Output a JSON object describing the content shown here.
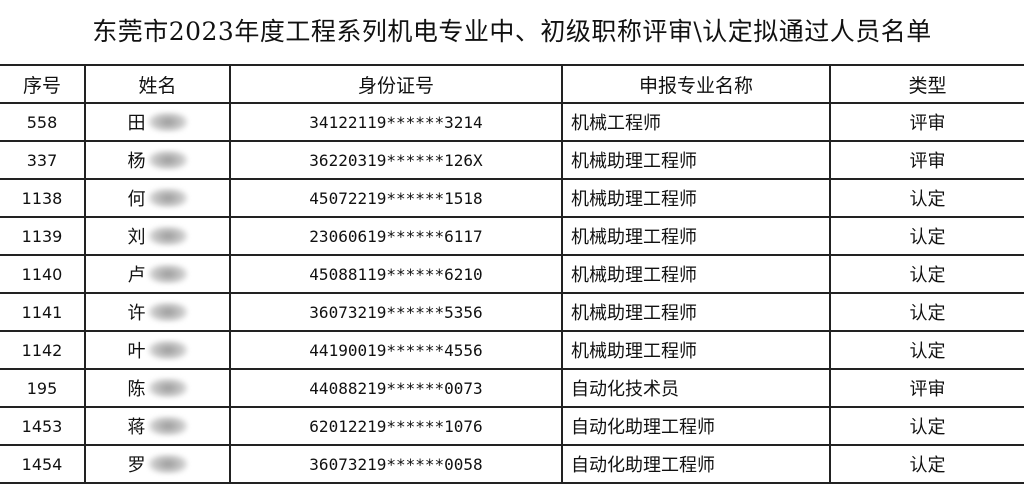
{
  "title": "东莞市2023年度工程系列机电专业中、初级职称评审\\认定拟通过人员名单",
  "headers": [
    "序号",
    "姓名",
    "身份证号",
    "申报专业名称",
    "类型"
  ],
  "rows": [
    {
      "seq": "558",
      "surname": "田",
      "id": "34122119******3214",
      "major": "机械工程师",
      "type": "评审"
    },
    {
      "seq": "337",
      "surname": "杨",
      "id": "36220319******126X",
      "major": "机械助理工程师",
      "type": "评审"
    },
    {
      "seq": "1138",
      "surname": "何",
      "id": "45072219******1518",
      "major": "机械助理工程师",
      "type": "认定"
    },
    {
      "seq": "1139",
      "surname": "刘",
      "id": "23060619******6117",
      "major": "机械助理工程师",
      "type": "认定"
    },
    {
      "seq": "1140",
      "surname": "卢",
      "id": "45088119******6210",
      "major": "机械助理工程师",
      "type": "认定"
    },
    {
      "seq": "1141",
      "surname": "许",
      "id": "36073219******5356",
      "major": "机械助理工程师",
      "type": "认定"
    },
    {
      "seq": "1142",
      "surname": "叶",
      "id": "44190019******4556",
      "major": "机械助理工程师",
      "type": "认定"
    },
    {
      "seq": "195",
      "surname": "陈",
      "id": "44088219******0073",
      "major": "自动化技术员",
      "type": "评审"
    },
    {
      "seq": "1453",
      "surname": "蒋",
      "id": "62012219******1076",
      "major": "自动化助理工程师",
      "type": "认定"
    },
    {
      "seq": "1454",
      "surname": "罗",
      "id": "36073219******0058",
      "major": "自动化助理工程师",
      "type": "认定"
    }
  ]
}
